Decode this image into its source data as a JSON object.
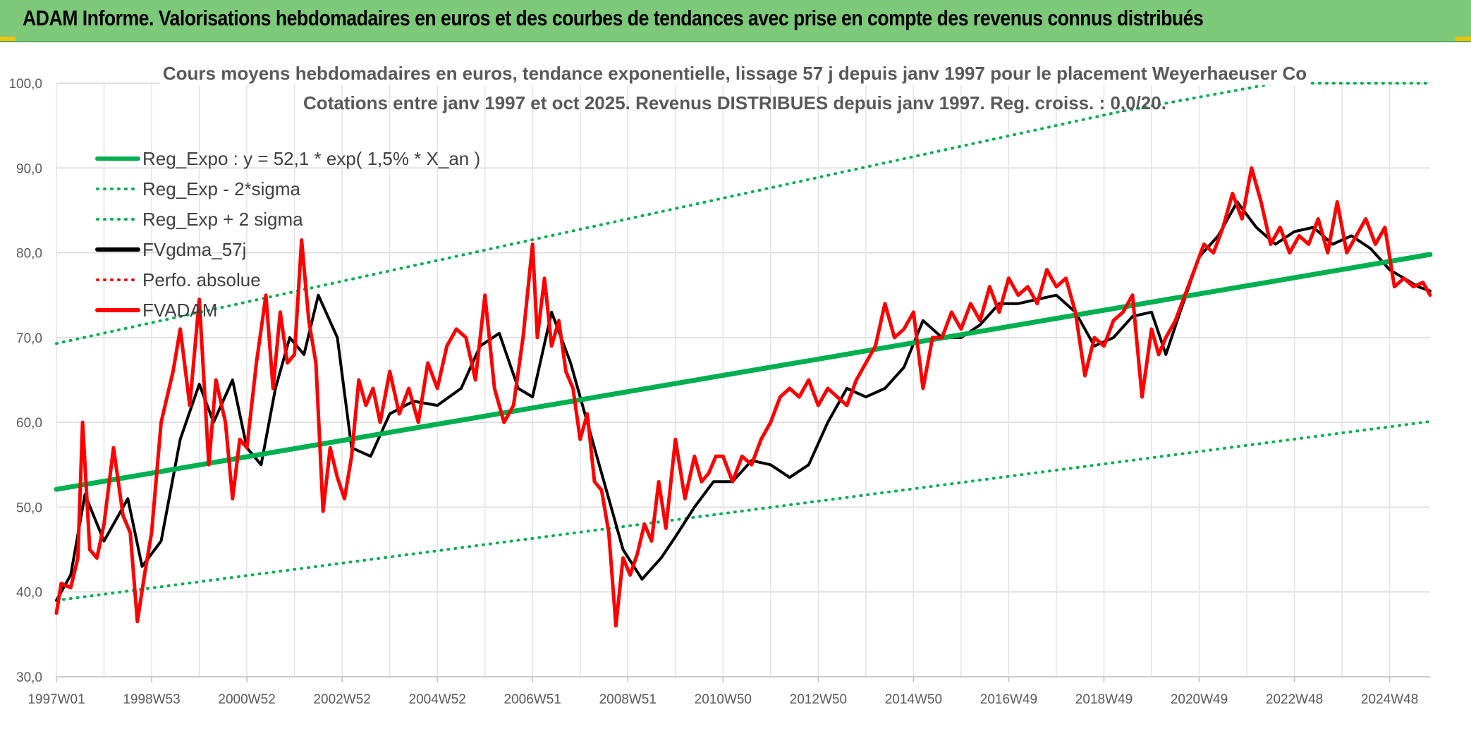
{
  "header": {
    "title": "ADAM Informe. Valorisations hebdomadaires en euros et des courbes de tendances avec prise en compte des revenus connus distribués"
  },
  "chart_data": {
    "type": "line",
    "title_line1": "Cours moyens hebdomadaires en euros, tendance exponentielle, lissage 57 j depuis janv 1997 pour le placement Weyerhaeuser Co",
    "title_line2": "Cotations entre janv 1997 et oct 2025. Revenus DISTRIBUES depuis janv 1997. Reg. croiss. : 0,0/20.",
    "ylim": [
      30,
      100
    ],
    "y_ticks": [
      "30,0",
      "40,0",
      "50,0",
      "60,0",
      "70,0",
      "80,0",
      "90,0",
      "100,0"
    ],
    "xlim": [
      1997.0,
      2025.85
    ],
    "x_ticks": [
      {
        "label": "1997W01",
        "x": 1997.0
      },
      {
        "label": "1998W53",
        "x": 1999.0
      },
      {
        "label": "2000W52",
        "x": 2001.0
      },
      {
        "label": "2002W52",
        "x": 2003.0
      },
      {
        "label": "2004W52",
        "x": 2005.0
      },
      {
        "label": "2006W51",
        "x": 2007.0
      },
      {
        "label": "2008W51",
        "x": 2009.0
      },
      {
        "label": "2010W50",
        "x": 2011.0
      },
      {
        "label": "2012W50",
        "x": 2013.0
      },
      {
        "label": "2014W50",
        "x": 2015.0
      },
      {
        "label": "2016W49",
        "x": 2017.0
      },
      {
        "label": "2018W49",
        "x": 2019.0
      },
      {
        "label": "2020W49",
        "x": 2021.0
      },
      {
        "label": "2022W48",
        "x": 2023.0
      },
      {
        "label": "2024W48",
        "x": 2025.0
      }
    ],
    "grid": true,
    "legend_position": "top-left",
    "series": [
      {
        "name": "Reg_Expo : y = 52,1 * exp( 1,5% *  X_an )",
        "color": "#00b050",
        "style": "solid",
        "width": 7,
        "x": [
          1997.0,
          2025.85
        ],
        "values": [
          52.1,
          79.8
        ]
      },
      {
        "name": "Reg_Exp - 2*sigma",
        "color": "#00b050",
        "style": "dotted",
        "width": 4,
        "x": [
          1997.0,
          2025.85
        ],
        "values": [
          39.0,
          60.1
        ]
      },
      {
        "name": "Reg_Exp + 2 sigma",
        "color": "#00b050",
        "style": "dotted",
        "width": 4,
        "x": [
          1997.0,
          2019.3,
          2022.6,
          2025.85
        ],
        "values": [
          69.3,
          96.6,
          100.0,
          100.0
        ]
      },
      {
        "name": "FVgdma_57j",
        "color": "#000000",
        "style": "solid",
        "width": 4,
        "x": [
          1997.0,
          1997.3,
          1997.6,
          1998.0,
          1998.5,
          1998.8,
          1999.2,
          1999.6,
          2000.0,
          2000.3,
          2000.7,
          2001.0,
          2001.3,
          2001.6,
          2001.9,
          2002.2,
          2002.5,
          2002.9,
          2003.2,
          2003.6,
          2004.0,
          2004.5,
          2005.0,
          2005.5,
          2005.9,
          2006.3,
          2006.7,
          2007.0,
          2007.4,
          2007.8,
          2008.2,
          2008.6,
          2008.9,
          2009.3,
          2009.7,
          2010.0,
          2010.4,
          2010.8,
          2011.2,
          2011.6,
          2012.0,
          2012.4,
          2012.8,
          2013.2,
          2013.6,
          2014.0,
          2014.4,
          2014.8,
          2015.2,
          2015.6,
          2016.0,
          2016.4,
          2016.8,
          2017.2,
          2017.6,
          2018.0,
          2018.4,
          2018.8,
          2019.2,
          2019.6,
          2020.0,
          2020.3,
          2020.6,
          2021.0,
          2021.4,
          2021.8,
          2022.2,
          2022.6,
          2023.0,
          2023.4,
          2023.8,
          2024.2,
          2024.6,
          2025.0,
          2025.3,
          2025.6,
          2025.85
        ],
        "values": [
          39.0,
          42.0,
          51.5,
          46.0,
          51.0,
          43.0,
          46.0,
          58.0,
          64.5,
          60.0,
          65.0,
          57.0,
          55.0,
          64.0,
          70.0,
          68.0,
          75.0,
          70.0,
          57.0,
          56.0,
          61.0,
          62.5,
          62.0,
          64.0,
          69.0,
          70.5,
          64.0,
          63.0,
          73.0,
          67.0,
          59.0,
          51.0,
          45.0,
          41.5,
          44.0,
          46.5,
          50.0,
          53.0,
          53.0,
          55.5,
          55.0,
          53.5,
          55.0,
          60.0,
          64.0,
          63.0,
          64.0,
          66.5,
          72.0,
          70.0,
          70.0,
          71.5,
          74.0,
          74.0,
          74.5,
          75.0,
          73.0,
          69.0,
          70.0,
          72.5,
          73.0,
          68.0,
          73.0,
          79.5,
          82.0,
          86.0,
          83.0,
          81.0,
          82.5,
          83.0,
          81.0,
          82.0,
          80.5,
          78.0,
          77.0,
          76.0,
          75.5
        ]
      },
      {
        "name": "Perfo. absolue",
        "color": "#ff0000",
        "style": "dotted",
        "width": 4,
        "x": [],
        "values": []
      },
      {
        "name": "FVADAM",
        "color": "#ff0000",
        "style": "solid",
        "width": 5,
        "x": [
          1997.0,
          1997.1,
          1997.3,
          1997.45,
          1997.55,
          1997.7,
          1997.85,
          1998.0,
          1998.2,
          1998.4,
          1998.55,
          1998.7,
          1998.85,
          1999.0,
          1999.2,
          1999.45,
          1999.6,
          1999.8,
          2000.0,
          2000.2,
          2000.35,
          2000.55,
          2000.7,
          2000.85,
          2001.0,
          2001.2,
          2001.4,
          2001.55,
          2001.7,
          2001.85,
          2002.0,
          2002.15,
          2002.3,
          2002.45,
          2002.6,
          2002.75,
          2002.9,
          2003.05,
          2003.2,
          2003.35,
          2003.5,
          2003.65,
          2003.8,
          2004.0,
          2004.2,
          2004.4,
          2004.6,
          2004.8,
          2005.0,
          2005.2,
          2005.4,
          2005.6,
          2005.8,
          2006.0,
          2006.2,
          2006.4,
          2006.6,
          2006.8,
          2007.0,
          2007.1,
          2007.25,
          2007.4,
          2007.55,
          2007.7,
          2007.85,
          2008.0,
          2008.15,
          2008.3,
          2008.45,
          2008.6,
          2008.75,
          2008.9,
          2009.05,
          2009.2,
          2009.35,
          2009.5,
          2009.65,
          2009.8,
          2010.0,
          2010.2,
          2010.4,
          2010.55,
          2010.7,
          2010.85,
          2011.0,
          2011.2,
          2011.4,
          2011.6,
          2011.8,
          2012.0,
          2012.2,
          2012.4,
          2012.6,
          2012.8,
          2013.0,
          2013.2,
          2013.4,
          2013.6,
          2013.8,
          2014.0,
          2014.2,
          2014.4,
          2014.6,
          2014.8,
          2015.0,
          2015.2,
          2015.4,
          2015.6,
          2015.8,
          2016.0,
          2016.2,
          2016.4,
          2016.6,
          2016.8,
          2017.0,
          2017.2,
          2017.4,
          2017.6,
          2017.8,
          2018.0,
          2018.2,
          2018.4,
          2018.6,
          2018.8,
          2019.0,
          2019.2,
          2019.4,
          2019.6,
          2019.8,
          2020.0,
          2020.15,
          2020.3,
          2020.5,
          2020.7,
          2020.9,
          2021.1,
          2021.3,
          2021.5,
          2021.7,
          2021.9,
          2022.1,
          2022.3,
          2022.5,
          2022.7,
          2022.9,
          2023.1,
          2023.3,
          2023.5,
          2023.7,
          2023.9,
          2024.1,
          2024.3,
          2024.5,
          2024.7,
          2024.9,
          2025.1,
          2025.3,
          2025.5,
          2025.7,
          2025.85
        ],
        "values": [
          37.5,
          41.0,
          40.5,
          44.0,
          60.0,
          45.0,
          44.0,
          48.0,
          57.0,
          49.0,
          47.0,
          36.5,
          42.0,
          47.0,
          60.0,
          66.0,
          71.0,
          62.0,
          74.5,
          55.0,
          65.0,
          60.0,
          51.0,
          58.0,
          57.0,
          67.0,
          75.0,
          64.0,
          73.0,
          67.0,
          68.0,
          81.5,
          72.0,
          67.0,
          49.5,
          57.0,
          53.5,
          51.0,
          56.0,
          65.0,
          62.0,
          64.0,
          60.0,
          66.0,
          61.0,
          64.0,
          60.0,
          67.0,
          64.0,
          69.0,
          71.0,
          70.0,
          65.0,
          75.0,
          64.0,
          60.0,
          62.0,
          70.0,
          81.0,
          70.0,
          77.0,
          69.0,
          72.0,
          66.0,
          64.0,
          58.0,
          61.0,
          53.0,
          52.0,
          47.0,
          36.0,
          44.0,
          42.0,
          44.5,
          48.0,
          46.0,
          53.0,
          47.5,
          58.0,
          51.0,
          56.0,
          53.0,
          54.0,
          56.0,
          56.0,
          53.0,
          56.0,
          55.0,
          58.0,
          60.0,
          63.0,
          64.0,
          63.0,
          65.0,
          62.0,
          64.0,
          63.0,
          62.0,
          65.0,
          67.0,
          69.0,
          74.0,
          70.0,
          71.0,
          73.0,
          64.0,
          70.0,
          70.0,
          73.0,
          71.0,
          74.0,
          72.0,
          76.0,
          73.0,
          77.0,
          75.0,
          76.0,
          74.0,
          78.0,
          76.0,
          77.0,
          73.0,
          65.5,
          70.0,
          69.0,
          72.0,
          73.0,
          75.0,
          63.0,
          71.0,
          68.0,
          70.0,
          72.0,
          75.0,
          78.0,
          81.0,
          80.0,
          83.0,
          87.0,
          84.0,
          90.0,
          86.0,
          81.0,
          83.0,
          80.0,
          82.0,
          81.0,
          84.0,
          80.0,
          86.0,
          80.0,
          82.0,
          84.0,
          81.0,
          83.0,
          76.0,
          77.0,
          76.0,
          76.5,
          75.0
        ]
      }
    ],
    "legend": [
      {
        "label": "Reg_Expo : y = 52,1 * exp( 1,5% *  X_an )",
        "color": "#00b050",
        "style": "solid"
      },
      {
        "label": "Reg_Exp - 2*sigma",
        "color": "#00b050",
        "style": "dotted"
      },
      {
        "label": "Reg_Exp + 2 sigma",
        "color": "#00b050",
        "style": "dotted"
      },
      {
        "label": "FVgdma_57j",
        "color": "#000000",
        "style": "solid"
      },
      {
        "label": "Perfo. absolue",
        "color": "#ff0000",
        "style": "dotted"
      },
      {
        "label": "FVADAM",
        "color": "#ff0000",
        "style": "solid"
      }
    ]
  }
}
